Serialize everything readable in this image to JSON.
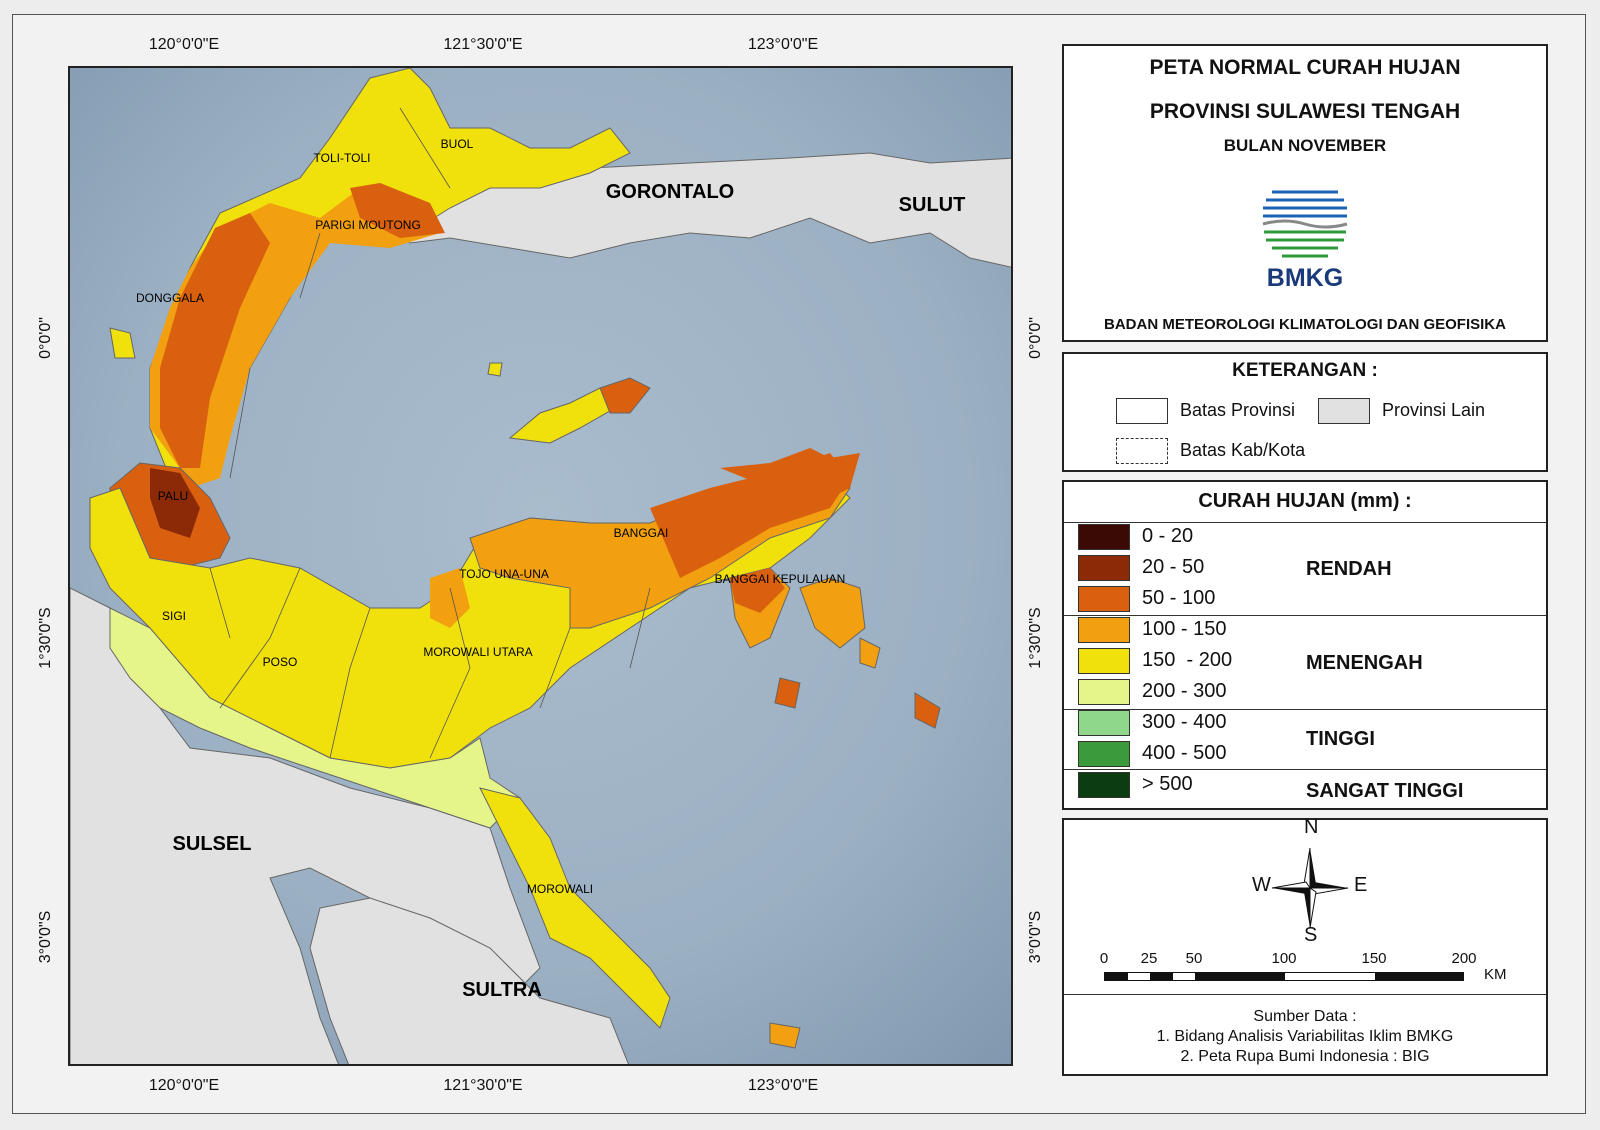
{
  "ticks": {
    "top": [
      "120°0'0\"E",
      "121°30'0\"E",
      "123°0'0\"E"
    ],
    "bottom": [
      "120°0'0\"E",
      "121°30'0\"E",
      "123°0'0\"E"
    ],
    "left": [
      "0°0'0\"",
      "1°30'0\"S",
      "3°0'0\"S"
    ],
    "right": [
      "0°0'0\"",
      "1°30'0\"S",
      "3°0'0\"S"
    ]
  },
  "map_labels": {
    "gorontalo": "GORONTALO",
    "sulut": "SULUT",
    "sulsel": "SULSEL",
    "sultra": "SULTRA",
    "toli_toli": "TOLI-TOLI",
    "buol": "BUOL",
    "parigi_moutong": "PARIGI MOUTONG",
    "donggala": "DONGGALA",
    "palu": "PALU",
    "sigi": "SIGI",
    "poso": "POSO",
    "tojo_una_una": "TOJO UNA-UNA",
    "morowali_utara": "MOROWALI UTARA",
    "banggai": "BANGGAI",
    "banggai_kepulauan": "BANGGAI KEPULAUAN",
    "morowali": "MOROWALI"
  },
  "title": {
    "line1": "PETA NORMAL CURAH HUJAN",
    "line2": "PROVINSI SULAWESI TENGAH",
    "line3": "BULAN NOVEMBER",
    "logo_text": "BMKG",
    "agency": "BADAN METEOROLOGI KLIMATOLOGI DAN GEOFISIKA"
  },
  "keterangan": {
    "title": "KETERANGAN :",
    "batas_provinsi": "Batas Provinsi",
    "provinsi_lain": "Provinsi Lain",
    "batas_kab": "Batas Kab/Kota"
  },
  "curah_hujan": {
    "title": "CURAH HUJAN (mm) :",
    "classes": [
      {
        "range": "0 - 20",
        "color": "#3b0a05"
      },
      {
        "range": "20 - 50",
        "color": "#8c2a07"
      },
      {
        "range": "50 - 100",
        "color": "#d9600e"
      },
      {
        "range": "100 - 150",
        "color": "#f2a00f"
      },
      {
        "range": "150  - 200",
        "color": "#f0e00b"
      },
      {
        "range": "200 - 300",
        "color": "#e5f58a"
      },
      {
        "range": "300 - 400",
        "color": "#8fd88b"
      },
      {
        "range": "400 - 500",
        "color": "#3b9a3a"
      },
      {
        "range": "> 500",
        "color": "#0c3d10"
      }
    ],
    "categories": {
      "rendah": "RENDAH",
      "menengah": "MENENGAH",
      "tinggi": "TINGGI",
      "sangat_tinggi": "SANGAT TINGGI"
    }
  },
  "compass": {
    "n": "N",
    "s": "S",
    "e": "E",
    "w": "W"
  },
  "scalebar": {
    "ticks": [
      "0",
      "25",
      "50",
      "100",
      "150",
      "200"
    ],
    "unit": "KM"
  },
  "source": {
    "title": "Sumber Data :",
    "line1": "1. Bidang Analisis Variabilitas Iklim BMKG",
    "line2": "2. Peta Rupa Bumi Indonesia : BIG"
  },
  "colors": {
    "sea": "#9fb1c2",
    "other_province": "#e1e1e1",
    "brand_blue": "#1b3a7a",
    "brand_green": "#2e9a3a"
  }
}
